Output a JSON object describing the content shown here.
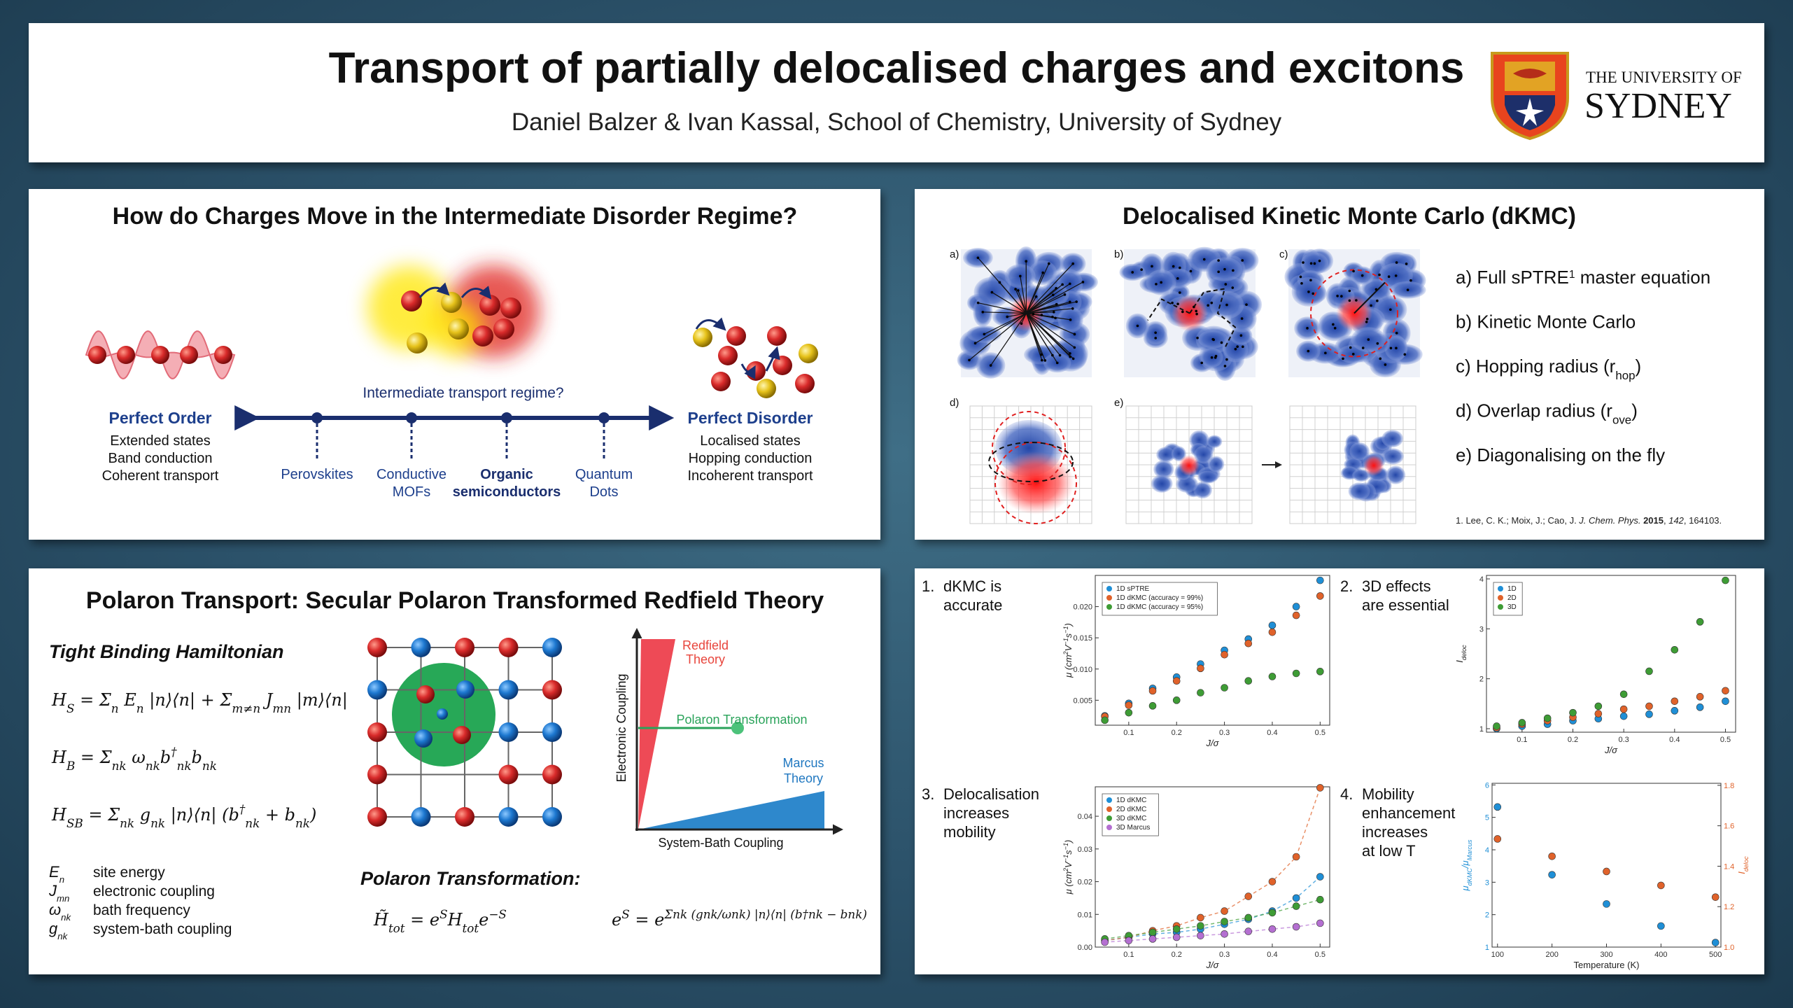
{
  "header": {
    "title": "Transport of partially delocalised charges and excitons",
    "authors": "Daniel Balzer & Ivan Kassal, School of Chemistry, University of Sydney",
    "logo_line1": "THE UNIVERSITY OF",
    "logo_line2": "SYDNEY"
  },
  "regime": {
    "title": "How do Charges Move in the Intermediate Disorder Regime?",
    "order": {
      "heading": "Perfect Order",
      "lines": [
        "Extended states",
        "Band conduction",
        "Coherent transport"
      ]
    },
    "disorder": {
      "heading": "Perfect Disorder",
      "lines": [
        "Localised states",
        "Hopping conduction",
        "Incoherent transport"
      ]
    },
    "question": "Intermediate transport regime?",
    "materials": [
      {
        "lines": [
          "Perovskites"
        ]
      },
      {
        "lines": [
          "Conductive",
          "MOFs"
        ]
      },
      {
        "lines": [
          "Organic",
          "semiconductors"
        ],
        "bold": true
      },
      {
        "lines": [
          "Quantum",
          "Dots"
        ]
      }
    ]
  },
  "dkmc": {
    "title": "Delocalised Kinetic Monte Carlo (dKMC)",
    "panel_labels": [
      "a)",
      "b)",
      "c)",
      "d)",
      "e)"
    ],
    "items": [
      {
        "text": "a) Full sPTRE",
        "sup": "1",
        "after": " master equation"
      },
      {
        "text": "b) Kinetic Monte Carlo"
      },
      {
        "text": "c) Hopping radius (r",
        "sub": "hop",
        "after": ")"
      },
      {
        "text": "d) Overlap radius (r",
        "sub": "ove",
        "after": ")"
      },
      {
        "text": "e) Diagonalising on the fly"
      }
    ],
    "reference": [
      {
        "text": "1. Lee, C. K.; Moix, J.; Cao, J. "
      },
      {
        "text": "J. Chem. Phys.",
        "style": "italic"
      },
      {
        "text": " "
      },
      {
        "text": "2015",
        "style": "bold"
      },
      {
        "text": ", "
      },
      {
        "text": "142",
        "style": "italic"
      },
      {
        "text": ", 164103."
      }
    ]
  },
  "polaron": {
    "title": "Polaron Transport: Secular Polaron Transformed Redfield Theory",
    "hamiltonian_heading": "Tight Binding Hamiltonian",
    "equations": [
      [
        "H",
        {
          "sub": "S"
        },
        " = Σ",
        {
          "sub": "n"
        },
        " E",
        {
          "sub": "n"
        },
        " |n⟩⟨n| + Σ",
        {
          "sub": "m≠n"
        },
        " J",
        {
          "sub": "mn"
        },
        " |m⟩⟨n|"
      ],
      [
        "H",
        {
          "sub": "B"
        },
        " = Σ",
        {
          "sub": "nk"
        },
        " ω",
        {
          "sub": "nk"
        },
        "b",
        {
          "sup": "†"
        },
        {
          "sub": "nk"
        },
        "b",
        {
          "sub": "nk"
        }
      ],
      [
        "H",
        {
          "sub": "SB"
        },
        " = Σ",
        {
          "sub": "nk"
        },
        " g",
        {
          "sub": "nk"
        },
        " |n⟩⟨n| (b",
        {
          "sup": "†"
        },
        {
          "sub": "nk"
        },
        " + b",
        {
          "sub": "nk"
        },
        ")"
      ]
    ],
    "symbols": [
      {
        "sym": "E",
        "sub": "n",
        "desc": "site energy"
      },
      {
        "sym": "J",
        "sub": "mn",
        "desc": "electronic coupling"
      },
      {
        "sym": "ω",
        "sub": "nk",
        "desc": "bath frequency"
      },
      {
        "sym": "g",
        "sub": "nk",
        "desc": "system-bath coupling"
      }
    ],
    "diagram": {
      "y_label": "Electronic Coupling",
      "x_label": "System-Bath Coupling",
      "redfield": [
        "Redfield",
        "Theory"
      ],
      "polaron": "Polaron Transformation",
      "marcus": [
        "Marcus",
        "Theory"
      ]
    },
    "transformation_heading": "Polaron Transformation:",
    "transformation_equations": [
      [
        "H̃",
        {
          "sub": "tot"
        },
        " = e",
        {
          "sup": "S"
        },
        "H",
        {
          "sub": "tot"
        },
        "e",
        {
          "sup": "−S"
        }
      ],
      [
        "e",
        {
          "sup": "S"
        },
        " = e",
        {
          "sup": "Σnk (gnk/ωnk) |n⟩⟨n| (b†nk − bnk)"
        }
      ]
    ]
  },
  "results": {
    "plots": [
      {
        "caption": {
          "number": "1.",
          "lines": [
            "dKMC is",
            "accurate"
          ]
        },
        "type": "scatter",
        "x": [
          0.05,
          0.1,
          0.15,
          0.2,
          0.25,
          0.3,
          0.35,
          0.4,
          0.45,
          0.5
        ],
        "xlim": [
          0.03,
          0.52
        ],
        "ylim": [
          0.001,
          0.025
        ],
        "xticks": [
          0.1,
          0.2,
          0.3,
          0.4,
          0.5
        ],
        "yticks": [
          0.005,
          {
            "value": 0.01,
            "label": "0.010"
          },
          0.015,
          {
            "value": 0.02,
            "label": "0.020"
          }
        ],
        "x_label": [
          "J/σ"
        ],
        "y_label": [
          "μ (cm",
          {
            "sup": "2"
          },
          "V",
          {
            "sup": "−1"
          },
          "s",
          {
            "sup": "−1"
          },
          ")"
        ],
        "legend": "upper left",
        "lines": false,
        "series": [
          {
            "name": "1D sPTRE",
            "color": "#1f8fd6",
            "values": [
              0.0025,
              0.0045,
              0.0069,
              0.0087,
              0.0108,
              0.013,
              0.0148,
              0.017,
              0.02,
              0.0242
            ]
          },
          {
            "name": "1D dKMC (accuracy = 99%)",
            "color": "#e0622a",
            "values": [
              0.0024,
              0.0042,
              0.0065,
              0.0081,
              0.0101,
              0.0123,
              0.0141,
              0.0159,
              0.0186,
              0.0217
            ]
          },
          {
            "name": "1D dKMC (accuracy = 95%)",
            "color": "#3e9c35",
            "values": [
              0.0018,
              0.003,
              0.0041,
              0.005,
              0.0062,
              0.007,
              0.0081,
              0.0088,
              0.0093,
              0.0096
            ]
          }
        ]
      },
      {
        "caption": {
          "number": "2.",
          "lines": [
            "3D effects",
            "are essential"
          ]
        },
        "type": "scatter",
        "x": [
          0.05,
          0.1,
          0.15,
          0.2,
          0.25,
          0.3,
          0.35,
          0.4,
          0.45,
          0.5
        ],
        "xlim": [
          0.03,
          0.52
        ],
        "ylim": [
          0.93,
          4.07
        ],
        "xticks": [
          0.1,
          0.2,
          0.3,
          0.4,
          0.5
        ],
        "yticks": [
          1,
          2,
          3,
          4
        ],
        "x_label": [
          "J/σ"
        ],
        "y_label": [
          "I",
          {
            "sub": "deloc"
          }
        ],
        "legend": "upper left",
        "lines": false,
        "series": [
          {
            "name": "1D",
            "color": "#1f8fd6",
            "values": [
              1.0,
              1.05,
              1.09,
              1.16,
              1.2,
              1.25,
              1.29,
              1.36,
              1.43,
              1.55
            ]
          },
          {
            "name": "2D",
            "color": "#e0622a",
            "values": [
              1.02,
              1.09,
              1.16,
              1.23,
              1.3,
              1.39,
              1.45,
              1.55,
              1.64,
              1.76
            ]
          },
          {
            "name": "3D",
            "color": "#3e9c35",
            "values": [
              1.05,
              1.12,
              1.21,
              1.32,
              1.45,
              1.69,
              2.15,
              2.58,
              3.14,
              3.97
            ]
          }
        ]
      },
      {
        "caption": {
          "number": "3.",
          "lines": [
            "Delocalisation",
            "increases",
            "mobility"
          ]
        },
        "type": "scatter",
        "x": [
          0.05,
          0.1,
          0.15,
          0.2,
          0.25,
          0.3,
          0.35,
          0.4,
          0.45,
          0.5
        ],
        "xlim": [
          0.03,
          0.52
        ],
        "ylim": [
          0,
          0.049
        ],
        "xticks": [
          0.1,
          0.2,
          0.3,
          0.4,
          0.5
        ],
        "yticks": [
          {
            "value": 0,
            "label": "0.00"
          },
          0.01,
          0.02,
          0.03,
          0.04
        ],
        "x_label": [
          "J/σ"
        ],
        "y_label": [
          "μ (cm",
          {
            "sup": "2"
          },
          "V",
          {
            "sup": "−1"
          },
          "s",
          {
            "sup": "−1"
          },
          ")"
        ],
        "legend": "upper left",
        "lines": true,
        "series": [
          {
            "name": "1D dKMC",
            "color": "#1f8fd6",
            "values": [
              0.002,
              0.003,
              0.004,
              0.0045,
              0.0055,
              0.007,
              0.0085,
              0.011,
              0.015,
              0.0215
            ]
          },
          {
            "name": "2D dKMC",
            "color": "#e0622a",
            "values": [
              0.002,
              0.003,
              0.005,
              0.0065,
              0.009,
              0.011,
              0.0155,
              0.02,
              0.0276,
              0.0487
            ]
          },
          {
            "name": "3D dKMC",
            "color": "#3e9c35",
            "values": [
              0.0025,
              0.0035,
              0.0045,
              0.0055,
              0.0065,
              0.0078,
              0.009,
              0.0105,
              0.0125,
              0.0145
            ]
          },
          {
            "name": "3D Marcus",
            "color": "#b46fd1",
            "values": [
              0.0015,
              0.002,
              0.0025,
              0.003,
              0.0035,
              0.004,
              0.0048,
              0.0055,
              0.0062,
              0.0073
            ]
          }
        ]
      },
      {
        "caption": {
          "number": "4.",
          "lines": [
            "Mobility",
            "enhancement",
            "increases",
            "at low T"
          ]
        },
        "type": "scatter",
        "x": [
          100,
          200,
          300,
          400,
          500
        ],
        "xlim": [
          90,
          510
        ],
        "ylim": [
          1,
          6.05
        ],
        "y2lim": [
          1,
          1.81
        ],
        "xticks": [
          100,
          200,
          300,
          400,
          500
        ],
        "yticks": [
          1,
          2,
          3,
          4,
          5,
          6
        ],
        "y2ticks": [
          {
            "value": 1,
            "label": "1.0"
          },
          1.2,
          1.4,
          1.6,
          1.8
        ],
        "x_label": [
          "Temperature (K)"
        ],
        "y_label": [
          "μ",
          {
            "sub": "dKMC"
          },
          "/μ",
          {
            "sub": "Marcus"
          }
        ],
        "y2_label": [
          "I",
          {
            "sub": "deloc"
          }
        ],
        "lines": false,
        "series": [
          {
            "color": "#1f8fd6",
            "values": [
              5.32,
              3.23,
              2.33,
              1.65,
              1.14
            ]
          },
          {
            "color": "#e0622a",
            "axis": "y2",
            "values": [
              1.535,
              1.449,
              1.374,
              1.305,
              1.247
            ]
          }
        ]
      }
    ]
  }
}
